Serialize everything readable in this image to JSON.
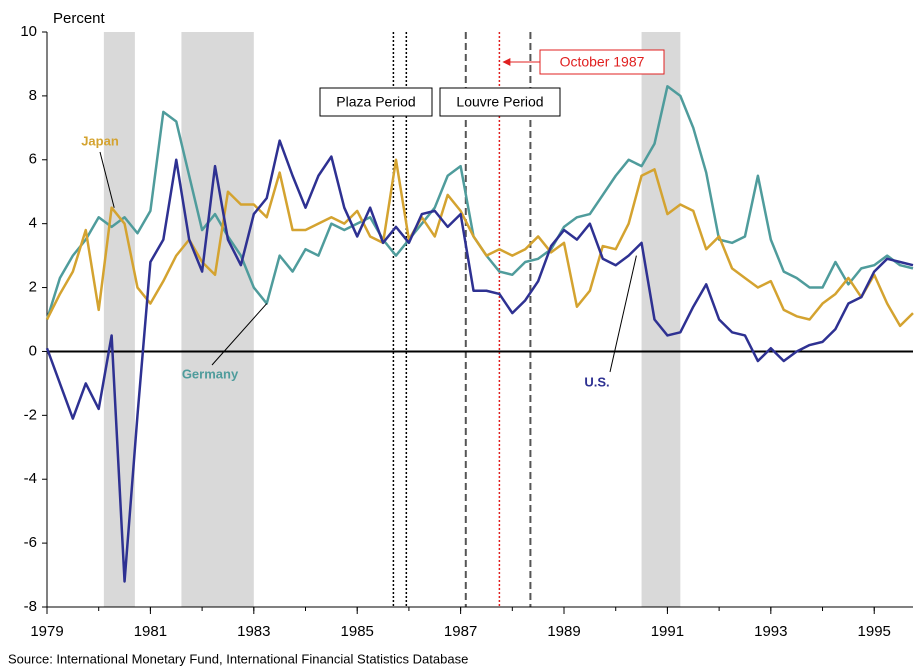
{
  "chart_data": {
    "type": "line",
    "y_axis_label": "Percent",
    "source": "Source: International Monetary Fund, International Financial Statistics Database",
    "xlim": [
      1979,
      1995.75
    ],
    "xticks": [
      1979,
      1981,
      1983,
      1985,
      1987,
      1989,
      1991,
      1993,
      1995
    ],
    "ylim": [
      -8,
      10
    ],
    "yticks": [
      -8,
      -6,
      -4,
      -2,
      0,
      2,
      4,
      6,
      8,
      10
    ],
    "x": [
      1979,
      1979.25,
      1979.5,
      1979.75,
      1980,
      1980.25,
      1980.5,
      1980.75,
      1981,
      1981.25,
      1981.5,
      1981.75,
      1982,
      1982.25,
      1982.5,
      1982.75,
      1983,
      1983.25,
      1983.5,
      1983.75,
      1984,
      1984.25,
      1984.5,
      1984.75,
      1985,
      1985.25,
      1985.5,
      1985.75,
      1986,
      1986.25,
      1986.5,
      1986.75,
      1987,
      1987.25,
      1987.5,
      1987.75,
      1988,
      1988.25,
      1988.5,
      1988.75,
      1989,
      1989.25,
      1989.5,
      1989.75,
      1990,
      1990.25,
      1990.5,
      1990.75,
      1991,
      1991.25,
      1991.5,
      1991.75,
      1992,
      1992.25,
      1992.5,
      1992.75,
      1993,
      1993.25,
      1993.5,
      1993.75,
      1994,
      1994.25,
      1994.5,
      1994.75,
      1995,
      1995.25,
      1995.5,
      1995.75
    ],
    "series": [
      {
        "name": "U.S.",
        "color": "#2e3192",
        "values": [
          0.1,
          -1.0,
          -2.1,
          -1.0,
          -1.8,
          0.5,
          -7.2,
          -2.0,
          2.8,
          3.5,
          6.0,
          3.5,
          2.5,
          5.8,
          3.5,
          2.7,
          4.3,
          4.8,
          6.6,
          5.5,
          4.5,
          5.5,
          6.1,
          4.5,
          3.6,
          4.5,
          3.4,
          3.9,
          3.4,
          4.3,
          4.4,
          3.9,
          4.3,
          1.9,
          1.9,
          1.8,
          1.2,
          1.6,
          2.2,
          3.3,
          3.8,
          3.5,
          4.0,
          2.9,
          2.7,
          3.0,
          3.4,
          1.0,
          0.5,
          0.6,
          1.4,
          2.1,
          1.0,
          0.6,
          0.5,
          -0.3,
          0.1,
          -0.3,
          0.0,
          0.2,
          0.3,
          0.7,
          1.5,
          1.7,
          2.5,
          2.9,
          2.8,
          2.7
        ]
      },
      {
        "name": "Germany",
        "color": "#4f9c9c",
        "values": [
          1.0,
          2.3,
          3.0,
          3.5,
          4.2,
          3.9,
          4.2,
          3.7,
          4.4,
          7.5,
          7.2,
          5.5,
          3.8,
          4.3,
          3.6,
          3.0,
          2.0,
          1.5,
          3.0,
          2.5,
          3.2,
          3.0,
          4.0,
          3.8,
          4.0,
          4.2,
          3.5,
          3.0,
          3.5,
          4.0,
          4.5,
          5.5,
          5.8,
          3.6,
          3.0,
          2.5,
          2.4,
          2.8,
          2.9,
          3.2,
          3.9,
          4.2,
          4.3,
          4.9,
          5.5,
          6.0,
          5.8,
          6.5,
          8.3,
          8.0,
          7.0,
          5.6,
          3.5,
          3.4,
          3.6,
          5.5,
          3.5,
          2.5,
          2.3,
          2.0,
          2.0,
          2.8,
          2.1,
          2.6,
          2.7,
          3.0,
          2.7,
          2.6
        ]
      },
      {
        "name": "Japan",
        "color": "#d4a330",
        "values": [
          1.0,
          1.8,
          2.5,
          3.8,
          1.3,
          4.5,
          4.0,
          2.0,
          1.5,
          2.2,
          3.0,
          3.5,
          2.8,
          2.4,
          5.0,
          4.6,
          4.6,
          4.2,
          5.6,
          3.8,
          3.8,
          4.0,
          4.2,
          4.0,
          4.4,
          3.6,
          3.4,
          6.0,
          3.5,
          4.2,
          3.6,
          4.9,
          4.4,
          3.6,
          3.0,
          3.2,
          3.0,
          3.2,
          3.6,
          3.1,
          3.4,
          1.4,
          1.9,
          3.3,
          3.2,
          4.0,
          5.5,
          5.7,
          4.3,
          4.6,
          4.4,
          3.2,
          3.6,
          2.6,
          2.3,
          2.0,
          2.2,
          1.3,
          1.1,
          1.0,
          1.5,
          1.8,
          2.3,
          1.7,
          2.4,
          1.5,
          0.8,
          1.2
        ]
      }
    ],
    "shaded_periods": [
      [
        1980.1,
        1980.7
      ],
      [
        1981.6,
        1983.0
      ],
      [
        1990.5,
        1991.25
      ]
    ],
    "reference_lines": [
      {
        "x": 1985.7,
        "style": "dotted",
        "color": "#000000"
      },
      {
        "x": 1985.95,
        "style": "dotted",
        "color": "#000000"
      },
      {
        "x": 1987.1,
        "style": "dashed",
        "color": "#555555"
      },
      {
        "x": 1987.75,
        "style": "dotted",
        "color": "#e02020"
      },
      {
        "x": 1988.35,
        "style": "dashed",
        "color": "#555555"
      }
    ],
    "annotations": [
      "Plaza Period",
      "Louvre Period",
      "October  1987"
    ]
  }
}
